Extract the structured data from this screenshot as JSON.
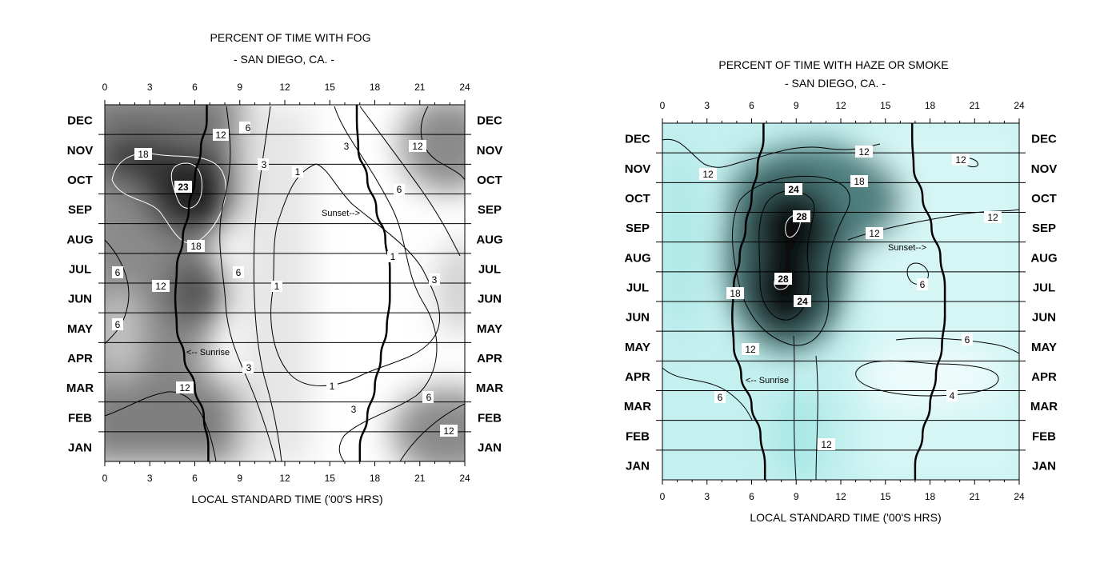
{
  "chart_data": [
    {
      "type": "heatmap",
      "title": "PERCENT OF TIME WITH FOG",
      "subtitle": "- SAN DIEGO, CA. -",
      "xlabel": "LOCAL STANDARD TIME ('00'S HRS)",
      "xlim": [
        0,
        24
      ],
      "x_ticks": [
        "0",
        "3",
        "6",
        "9",
        "12",
        "15",
        "18",
        "21",
        "24"
      ],
      "y_months_top_to_bottom": [
        "DEC",
        "NOV",
        "OCT",
        "SEP",
        "AUG",
        "JUL",
        "JUN",
        "MAY",
        "APR",
        "MAR",
        "FEB",
        "JAN"
      ],
      "color_scale": "grayscale (dark = higher percent)",
      "contour_labels": [
        "1",
        "1",
        "1",
        "1",
        "3",
        "3",
        "3",
        "3",
        "3",
        "6",
        "6",
        "6",
        "6",
        "6",
        "6",
        "12",
        "12",
        "12",
        "12",
        "12",
        "18",
        "18",
        "23"
      ],
      "annotations": [
        "Sunset-->",
        "<-- Sunrise"
      ],
      "sunrise_hour_by_month": {
        "JAN": 6.9,
        "FEB": 6.6,
        "MAR": 6.0,
        "APR": 5.3,
        "MAY": 4.8,
        "JUN": 4.7,
        "JUL": 4.8,
        "AUG": 5.2,
        "SEP": 5.6,
        "OCT": 6.0,
        "NOV": 6.4,
        "DEC": 6.8
      },
      "sunset_hour_by_month": {
        "JAN": 17.0,
        "FEB": 17.5,
        "MAR": 18.0,
        "APR": 18.4,
        "MAY": 18.8,
        "JUN": 19.0,
        "JUL": 19.0,
        "AUG": 18.7,
        "SEP": 18.1,
        "OCT": 17.5,
        "NOV": 16.9,
        "DEC": 16.8
      },
      "peak_value": 23,
      "peak_location": {
        "hour": 5.5,
        "month": "OCT"
      }
    },
    {
      "type": "heatmap",
      "title": "PERCENT OF TIME WITH HAZE OR SMOKE",
      "subtitle": "- SAN DIEGO, CA. -",
      "xlabel": "LOCAL STANDARD TIME ('00'S HRS)",
      "xlim": [
        0,
        24
      ],
      "x_ticks": [
        "0",
        "3",
        "6",
        "9",
        "12",
        "15",
        "18",
        "21",
        "24"
      ],
      "y_months_top_to_bottom": [
        "DEC",
        "NOV",
        "OCT",
        "SEP",
        "AUG",
        "JUL",
        "JUN",
        "MAY",
        "APR",
        "MAR",
        "FEB",
        "JAN"
      ],
      "color_scale": "cyan to black (dark = higher percent)",
      "contour_labels": [
        "4",
        "6",
        "6",
        "6",
        "12",
        "12",
        "12",
        "12",
        "12",
        "12",
        "12",
        "18",
        "18",
        "24",
        "24",
        "28",
        "28"
      ],
      "annotations": [
        "Sunset-->",
        "<-- Sunrise"
      ],
      "sunrise_hour_by_month": {
        "JAN": 6.9,
        "FEB": 6.6,
        "MAR": 6.0,
        "APR": 5.3,
        "MAY": 4.8,
        "JUN": 4.7,
        "JUL": 4.8,
        "AUG": 5.2,
        "SEP": 5.6,
        "OCT": 6.0,
        "NOV": 6.4,
        "DEC": 6.8
      },
      "sunset_hour_by_month": {
        "JAN": 17.0,
        "FEB": 17.5,
        "MAR": 18.0,
        "APR": 18.4,
        "MAY": 18.8,
        "JUN": 19.0,
        "JUL": 19.0,
        "AUG": 18.7,
        "SEP": 18.1,
        "OCT": 17.5,
        "NOV": 16.9,
        "DEC": 16.8
      },
      "peak_value": 28,
      "peak_location": {
        "hour": 8.5,
        "month": "SEP"
      }
    }
  ]
}
